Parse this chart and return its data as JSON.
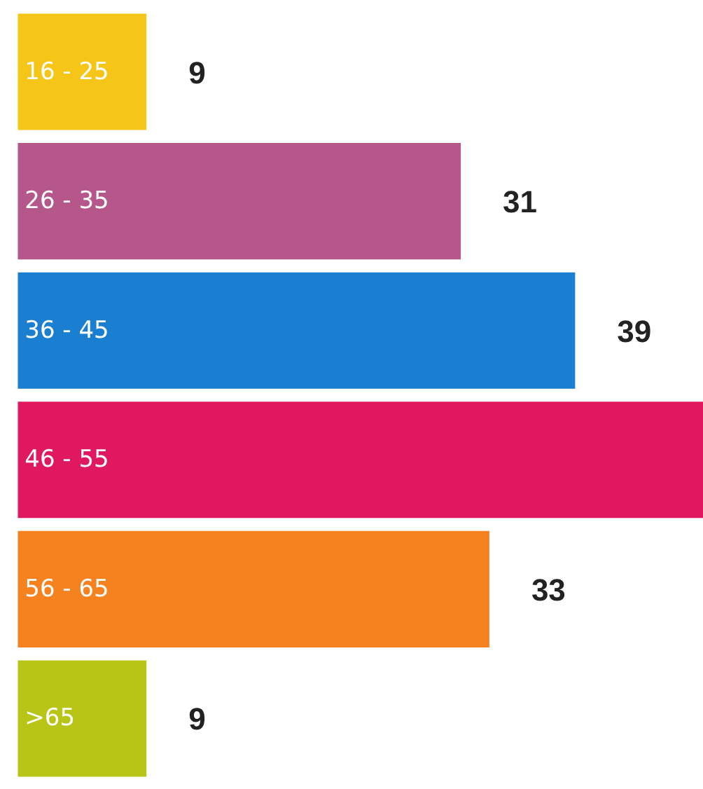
{
  "chart_data": {
    "type": "bar",
    "orientation": "horizontal",
    "tick_labels": false,
    "categories": [
      "16 - 25",
      "26 - 35",
      "36 - 45",
      "46 - 55",
      "56 - 65",
      ">65"
    ],
    "values": [
      9,
      31,
      39,
      48,
      33,
      9
    ],
    "colors": [
      "#f5c518",
      "#b5578a",
      "#1b7fd1",
      "#e0185f",
      "#f5821f",
      "#b8c416"
    ],
    "value_labels": [
      "9",
      "31",
      "39",
      null,
      "33",
      "9"
    ]
  }
}
